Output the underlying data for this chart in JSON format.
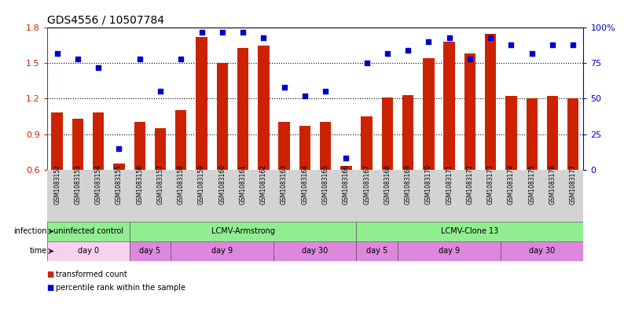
{
  "title": "GDS4556 / 10507784",
  "samples": [
    "GSM1083152",
    "GSM1083153",
    "GSM1083154",
    "GSM1083155",
    "GSM1083156",
    "GSM1083157",
    "GSM1083158",
    "GSM1083159",
    "GSM1083160",
    "GSM1083161",
    "GSM1083162",
    "GSM1083163",
    "GSM1083164",
    "GSM1083165",
    "GSM1083166",
    "GSM1083167",
    "GSM1083168",
    "GSM1083169",
    "GSM1083170",
    "GSM1083171",
    "GSM1083172",
    "GSM1083173",
    "GSM1083174",
    "GSM1083175",
    "GSM1083176",
    "GSM1083177"
  ],
  "bar_values": [
    1.08,
    1.03,
    1.08,
    0.65,
    1.0,
    0.95,
    1.1,
    1.72,
    1.5,
    1.63,
    1.65,
    1.0,
    0.97,
    1.0,
    0.63,
    1.05,
    1.21,
    1.23,
    1.54,
    1.68,
    1.58,
    1.75,
    1.22,
    1.2,
    1.22,
    1.2
  ],
  "percentile_values": [
    82,
    78,
    72,
    15,
    78,
    55,
    78,
    97,
    97,
    97,
    93,
    58,
    52,
    55,
    8,
    75,
    82,
    84,
    90,
    93,
    78,
    93,
    88,
    82,
    88,
    88
  ],
  "ylim_left": [
    0.6,
    1.8
  ],
  "ylim_right": [
    0,
    100
  ],
  "yticks_left": [
    0.6,
    0.9,
    1.2,
    1.5,
    1.8
  ],
  "yticks_right": [
    0,
    25,
    50,
    75,
    100
  ],
  "ytick_labels_right": [
    "0",
    "25",
    "50",
    "75",
    "100%"
  ],
  "bar_color": "#cc2200",
  "dot_color": "#0000cc",
  "bg_color": "#ffffff",
  "label_bg": "#d3d3d3",
  "infection_spans": [
    {
      "start": 0,
      "end": 4,
      "color": "#90ee90",
      "label": "uninfected control"
    },
    {
      "start": 4,
      "end": 15,
      "color": "#90ee90",
      "label": "LCMV-Armstrong"
    },
    {
      "start": 15,
      "end": 26,
      "color": "#90ee90",
      "label": "LCMV-Clone 13"
    }
  ],
  "time_spans": [
    {
      "start": 0,
      "end": 4,
      "color": "#f8d0f0",
      "label": "day 0"
    },
    {
      "start": 4,
      "end": 6,
      "color": "#dd88dd",
      "label": "day 5"
    },
    {
      "start": 6,
      "end": 11,
      "color": "#dd88dd",
      "label": "day 9"
    },
    {
      "start": 11,
      "end": 15,
      "color": "#dd88dd",
      "label": "day 30"
    },
    {
      "start": 15,
      "end": 17,
      "color": "#dd88dd",
      "label": "day 5"
    },
    {
      "start": 17,
      "end": 22,
      "color": "#dd88dd",
      "label": "day 9"
    },
    {
      "start": 22,
      "end": 26,
      "color": "#dd88dd",
      "label": "day 30"
    }
  ],
  "legend_items": [
    {
      "label": "transformed count",
      "color": "#cc2200"
    },
    {
      "label": "percentile rank within the sample",
      "color": "#0000cc"
    }
  ],
  "title_fontsize": 10,
  "tick_fontsize": 8,
  "sample_fontsize": 5.5,
  "row_fontsize": 7,
  "n_samples": 26
}
